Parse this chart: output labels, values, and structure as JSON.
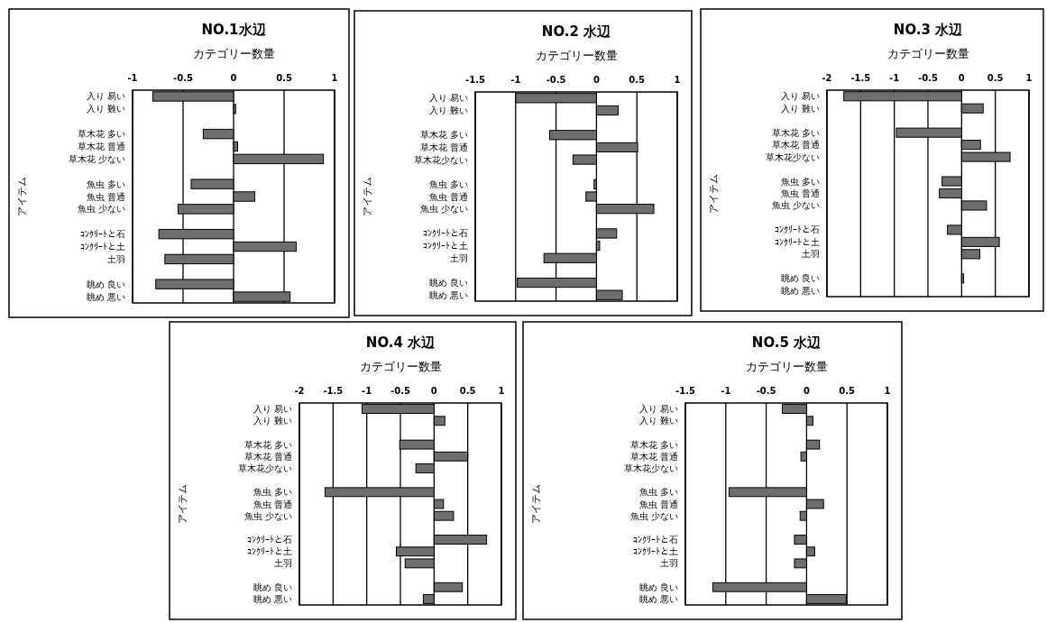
{
  "chart_data": [
    {
      "type": "bar",
      "orientation": "horizontal",
      "title": "NO.1水辺",
      "xlabel": "カテゴリー数量",
      "ylabel": "アイテム",
      "categories": [
        "入り 易い",
        "入り 難い",
        null,
        "草木花 多い",
        "草木花 普通",
        "草木花 少ない",
        null,
        "魚虫 多い",
        "魚虫 普通",
        "魚虫 少ない",
        null,
        "ｺﾝｸﾘｰﾄと石",
        "ｺﾝｸﾘｰﾄと土",
        "土羽",
        null,
        "眺め 良い",
        "眺め 悪い"
      ],
      "values": [
        -0.8,
        0.02,
        null,
        -0.3,
        0.04,
        0.89,
        null,
        -0.42,
        0.21,
        -0.55,
        null,
        -0.74,
        0.62,
        -0.68,
        null,
        -0.77,
        0.56
      ],
      "color": "#6e6e6e",
      "xlim": [
        -1,
        1
      ],
      "xticks": [
        -1,
        -0.5,
        0,
        0.5,
        1
      ],
      "grid": "x"
    },
    {
      "type": "bar",
      "orientation": "horizontal",
      "title": "NO.2 水辺",
      "xlabel": "カテゴリー数量",
      "ylabel": "アイテム",
      "categories": [
        "入り 易い",
        "入り 難い",
        null,
        "草木花 多い",
        "草木花 普通",
        "草木花少ない",
        null,
        "魚虫 多い",
        "魚虫 普通",
        "魚虫 少ない",
        null,
        "ｺﾝｸﾘｰﾄと石",
        "ｺﾝｸﾘｰﾄと土",
        "土羽",
        null,
        "眺め 良い",
        "眺め 悪い"
      ],
      "values": [
        -1.0,
        0.27,
        null,
        -0.58,
        0.51,
        -0.29,
        null,
        -0.03,
        -0.13,
        0.71,
        null,
        0.25,
        0.04,
        -0.65,
        null,
        -0.98,
        0.32
      ],
      "color": "#6e6e6e",
      "xlim": [
        -1.5,
        1
      ],
      "xticks": [
        -1.5,
        -1,
        -0.5,
        0,
        0.5,
        1
      ],
      "grid": "x"
    },
    {
      "type": "bar",
      "orientation": "horizontal",
      "title": "NO.3 水辺",
      "xlabel": "カテゴリー数量",
      "ylabel": "アイテム",
      "categories": [
        "入り 易い",
        "入り 難い",
        null,
        "草木花 多い",
        "草木花 普通",
        "草木花少ない",
        null,
        "魚虫 多い",
        "魚虫 普通",
        "魚虫 少ない",
        null,
        "ｺﾝｸﾘｰﾄと石",
        "ｺﾝｸﾘｰﾄと土",
        "土羽",
        null,
        "眺め 良い",
        "眺め 悪い"
      ],
      "values": [
        -1.75,
        0.32,
        null,
        -0.97,
        0.28,
        0.72,
        null,
        -0.29,
        -0.33,
        0.37,
        null,
        -0.21,
        0.56,
        0.27,
        null,
        0.03,
        null
      ],
      "color": "#6e6e6e",
      "xlim": [
        -2,
        1
      ],
      "xticks": [
        -2,
        -1.5,
        -1,
        -0.5,
        0,
        0.5,
        1
      ],
      "grid": "x"
    },
    {
      "type": "bar",
      "orientation": "horizontal",
      "title": "NO.4 水辺",
      "xlabel": "カテゴリー数量",
      "ylabel": "アイテム",
      "categories": [
        "入り 易い",
        "入り 難い",
        null,
        "草木花 多い",
        "草木花 普通",
        "草木花少ない",
        null,
        "魚虫 多い",
        "魚虫 普通",
        "魚虫 少ない",
        null,
        "ｺﾝｸﾘｰﾄと石",
        "ｺﾝｸﾘｰﾄと土",
        "土羽",
        null,
        "眺め 良い",
        "眺め 悪い"
      ],
      "values": [
        -1.07,
        0.16,
        null,
        -0.51,
        0.5,
        -0.27,
        null,
        -1.62,
        0.14,
        0.29,
        null,
        0.78,
        -0.56,
        -0.43,
        null,
        0.42,
        -0.16
      ],
      "color": "#6e6e6e",
      "xlim": [
        -2,
        1
      ],
      "xticks": [
        -2,
        -1.5,
        -1,
        -0.5,
        0,
        0.5,
        1
      ],
      "grid": "x"
    },
    {
      "type": "bar",
      "orientation": "horizontal",
      "title": "NO.5 水辺",
      "xlabel": "カテゴリー数量",
      "ylabel": "アイテム",
      "categories": [
        "入り 易い",
        "入り 難い",
        null,
        "草木花 多い",
        "草木花 普通",
        "草木花少ない",
        null,
        "魚虫 多い",
        "魚虫 普通",
        "魚虫 少ない",
        null,
        "ｺﾝｸﾘｰﾄと石",
        "ｺﾝｸﾘｰﾄと土",
        "土羽",
        null,
        "眺め 良い",
        "眺め 悪い"
      ],
      "values": [
        -0.3,
        0.08,
        null,
        0.16,
        -0.07,
        null,
        null,
        -0.96,
        0.21,
        -0.08,
        null,
        -0.15,
        0.1,
        -0.15,
        null,
        -1.16,
        0.49
      ],
      "color": "#6e6e6e",
      "xlim": [
        -1.5,
        1
      ],
      "xticks": [
        -1.5,
        -1,
        -0.5,
        0,
        0.5,
        1
      ],
      "grid": "x"
    }
  ]
}
